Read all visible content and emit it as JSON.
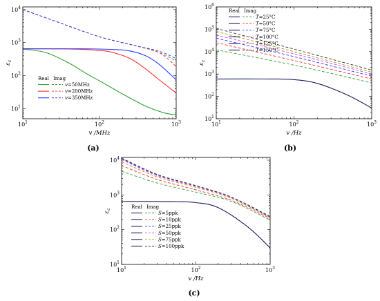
{
  "chart_data": [
    {
      "id": "a",
      "panel_label": "(a)",
      "type": "line",
      "xscale": "log",
      "yscale": "log",
      "xlim": [
        10,
        1000
      ],
      "ylim": [
        5,
        12000
      ],
      "xlabel": "v /MHz",
      "ylabel": "ε_c",
      "xticks": [
        10,
        100,
        1000
      ],
      "yticks": [
        10,
        100,
        1000,
        10000
      ],
      "legend_header": [
        "Real",
        "Imag"
      ],
      "legend_position": "bottom-left",
      "series": [
        {
          "name": "v=50MHz",
          "color": "#2ca02c",
          "real": [
            [
              10,
              640
            ],
            [
              20,
              500
            ],
            [
              40,
              240
            ],
            [
              70,
              110
            ],
            [
              100,
              70
            ],
            [
              200,
              28
            ],
            [
              400,
              12
            ],
            [
              700,
              7.5
            ],
            [
              1000,
              6.5
            ]
          ],
          "imag": [
            [
              10,
              10000
            ],
            [
              30,
              4000
            ],
            [
              100,
              1500
            ],
            [
              300,
              800
            ],
            [
              600,
              500
            ],
            [
              1000,
              280
            ]
          ]
        },
        {
          "name": "v=200MHz",
          "color": "#ff2a2a",
          "real": [
            [
              10,
              650
            ],
            [
              40,
              640
            ],
            [
              100,
              580
            ],
            [
              150,
              500
            ],
            [
              250,
              330
            ],
            [
              400,
              160
            ],
            [
              600,
              75
            ],
            [
              1000,
              30
            ]
          ],
          "imag": [
            [
              10,
              10000
            ],
            [
              30,
              4000
            ],
            [
              100,
              1500
            ],
            [
              300,
              800
            ],
            [
              600,
              500
            ],
            [
              1000,
              190
            ]
          ]
        },
        {
          "name": "v=350MHz",
          "color": "#2a3aff",
          "real": [
            [
              10,
              650
            ],
            [
              60,
              650
            ],
            [
              150,
              620
            ],
            [
              250,
              560
            ],
            [
              400,
              400
            ],
            [
              600,
              220
            ],
            [
              1000,
              75
            ]
          ],
          "imag": [
            [
              10,
              10000
            ],
            [
              30,
              4000
            ],
            [
              100,
              1500
            ],
            [
              300,
              800
            ],
            [
              600,
              550
            ],
            [
              1000,
              330
            ]
          ]
        }
      ]
    },
    {
      "id": "b",
      "panel_label": "(b)",
      "type": "line",
      "xscale": "log",
      "yscale": "log",
      "xlim": [
        10,
        1000
      ],
      "ylim": [
        10,
        1000000
      ],
      "xlabel": "v /Hz",
      "ylabel": "ε_c",
      "xticks": [
        10,
        100,
        1000
      ],
      "yticks": [
        10,
        100,
        1000,
        10000,
        100000,
        1000000
      ],
      "legend_header": [
        "Real",
        "Imag"
      ],
      "legend_position": "top-left",
      "real_common": {
        "color": "#1a1a5e",
        "points": [
          [
            10,
            600
          ],
          [
            50,
            600
          ],
          [
            100,
            560
          ],
          [
            200,
            380
          ],
          [
            500,
            110
          ],
          [
            1000,
            30
          ]
        ]
      },
      "series": [
        {
          "name": "T=25°C",
          "color": "#2ca02c",
          "imag": [
            [
              10,
              12000
            ],
            [
              100,
              2500
            ],
            [
              1000,
              400
            ]
          ]
        },
        {
          "name": "T=50°C",
          "color": "#ff2a2a",
          "imag": [
            [
              10,
              25000
            ],
            [
              100,
              4000
            ],
            [
              1000,
              600
            ]
          ]
        },
        {
          "name": "T=75°C",
          "color": "#2a3aff",
          "imag": [
            [
              10,
              40000
            ],
            [
              100,
              6000
            ],
            [
              1000,
              800
            ]
          ]
        },
        {
          "name": "T=100°C",
          "color": "#e040e0",
          "imag": [
            [
              10,
              55000
            ],
            [
              100,
              8000
            ],
            [
              1000,
              1000
            ]
          ]
        },
        {
          "name": "T=125°C",
          "color": "#a0a020",
          "imag": [
            [
              10,
              80000
            ],
            [
              100,
              10000
            ],
            [
              1000,
              1200
            ]
          ]
        },
        {
          "name": "T=150°C",
          "color": "#303030",
          "imag": [
            [
              10,
              110000
            ],
            [
              100,
              13000
            ],
            [
              1000,
              1500
            ]
          ]
        }
      ]
    },
    {
      "id": "c",
      "panel_label": "(c)",
      "type": "line",
      "xscale": "log",
      "yscale": "log",
      "xlim": [
        10,
        1000
      ],
      "ylim": [
        10,
        12000
      ],
      "xlabel": "v /Hz",
      "ylabel": "ε_c",
      "xticks": [
        10,
        100,
        1000
      ],
      "yticks": [
        10,
        100,
        1000,
        10000
      ],
      "legend_header": [
        "Real",
        "Imag"
      ],
      "legend_position": "bottom-left",
      "real_common": {
        "color": "#1a1a5e",
        "points": [
          [
            10,
            650
          ],
          [
            50,
            640
          ],
          [
            100,
            600
          ],
          [
            200,
            430
          ],
          [
            500,
            120
          ],
          [
            1000,
            30
          ]
        ]
      },
      "series": [
        {
          "name": "S=5ppk",
          "color": "#2ca02c",
          "imag": [
            [
              10,
              4800
            ],
            [
              30,
              2200
            ],
            [
              100,
              1200
            ],
            [
              300,
              650
            ],
            [
              1000,
              190
            ]
          ]
        },
        {
          "name": "S=10ppk",
          "color": "#ff2a2a",
          "imag": [
            [
              10,
              7000
            ],
            [
              30,
              2800
            ],
            [
              100,
              1400
            ],
            [
              300,
              700
            ],
            [
              1000,
              210
            ]
          ]
        },
        {
          "name": "S=25ppk",
          "color": "#2a3aff",
          "imag": [
            [
              10,
              11000
            ],
            [
              30,
              3800
            ],
            [
              100,
              1800
            ],
            [
              300,
              850
            ],
            [
              1000,
              230
            ]
          ]
        },
        {
          "name": "S=50ppk",
          "color": "#e040e0",
          "imag": [
            [
              10,
              10500
            ],
            [
              30,
              3600
            ],
            [
              100,
              1750
            ],
            [
              300,
              830
            ],
            [
              1000,
              225
            ]
          ]
        },
        {
          "name": "S=75ppk",
          "color": "#a0a020",
          "imag": [
            [
              10,
              9000
            ],
            [
              30,
              3300
            ],
            [
              100,
              1650
            ],
            [
              300,
              800
            ],
            [
              1000,
              220
            ]
          ]
        },
        {
          "name": "S=100ppk",
          "color": "#303030",
          "imag": [
            [
              10,
              11500
            ],
            [
              30,
              3900
            ],
            [
              100,
              1850
            ],
            [
              300,
              870
            ],
            [
              1000,
              240
            ]
          ]
        }
      ]
    }
  ]
}
